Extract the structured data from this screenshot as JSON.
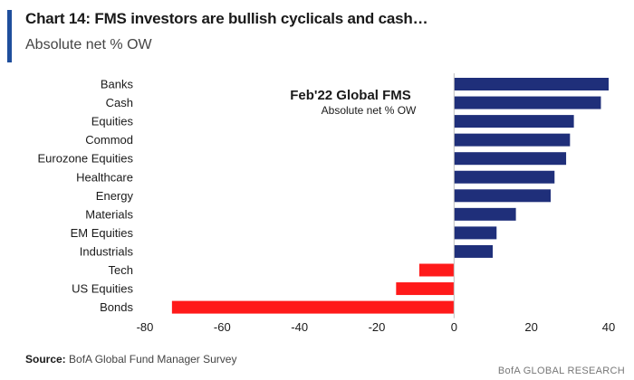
{
  "header": {
    "title": "Chart 14: FMS investors are bullish cyclicals and cash…",
    "subtitle": "Absolute net % OW"
  },
  "footer": {
    "source_label": "Source:",
    "source_text": "BofA Global Fund Manager Survey",
    "brand": "BofA GLOBAL RESEARCH"
  },
  "colors": {
    "accent": "#1f4e9c",
    "positive": "#1f2f7a",
    "negative": "#ff1a1a"
  },
  "chart_data": {
    "type": "bar",
    "orientation": "horizontal",
    "title": "Feb'22 Global FMS",
    "subtitle": "Absolute net % OW",
    "categories": [
      "Banks",
      "Cash",
      "Equities",
      "Commod",
      "Eurozone Equities",
      "Healthcare",
      "Energy",
      "Materials",
      "EM Equities",
      "Industrials",
      "Tech",
      "US Equities",
      "Bonds"
    ],
    "values": [
      40,
      38,
      31,
      30,
      29,
      26,
      25,
      16,
      11,
      10,
      -9,
      -15,
      -73
    ],
    "xlim": [
      -80,
      40
    ],
    "xticks": [
      -80,
      -60,
      -40,
      -20,
      0,
      20,
      40
    ],
    "xtick_labels": [
      "-80",
      "-60",
      "-40",
      "-20",
      "0",
      "20",
      "40"
    ],
    "grid": false,
    "legend": "none"
  }
}
